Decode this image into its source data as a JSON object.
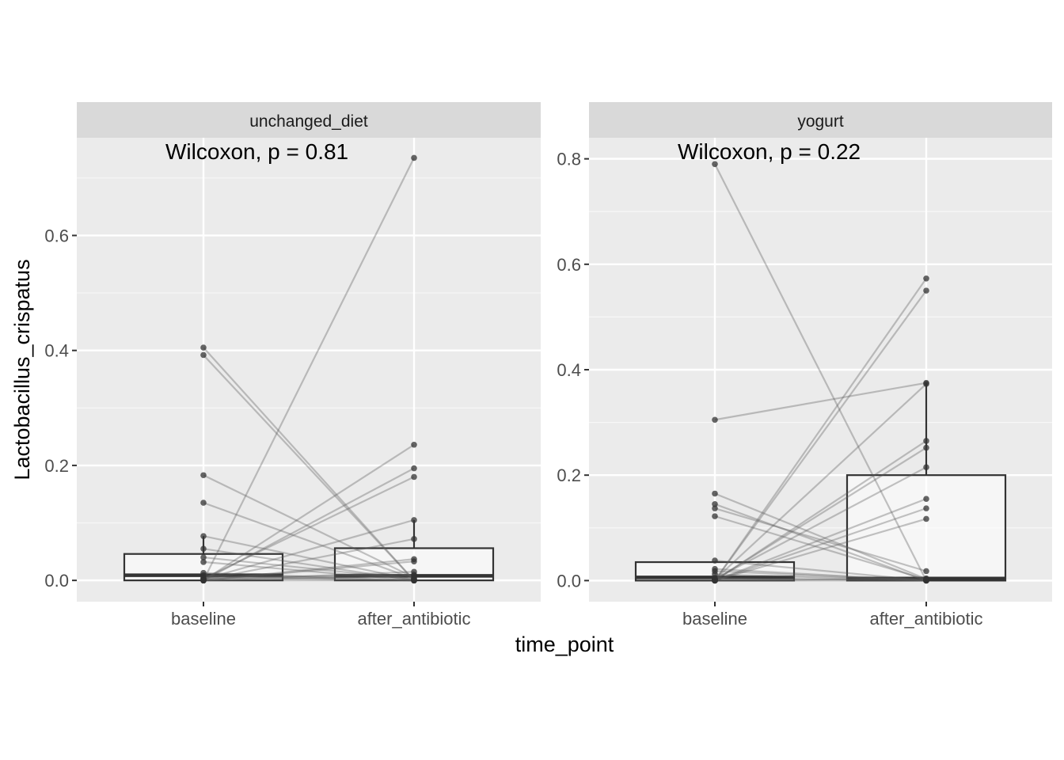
{
  "chart_data": {
    "type": "box-paired-faceted",
    "xlabel": "time_point",
    "ylabel": "Lactobacillus_crispatus",
    "categories": [
      "baseline",
      "after_antibiotic"
    ],
    "panels": [
      {
        "facet": "unchanged_diet",
        "annotation": "Wilcoxon, p = 0.81",
        "ylim": [
          -0.037,
          0.77
        ],
        "yticks": [
          0.0,
          0.2,
          0.4,
          0.6
        ],
        "ytick_labels": [
          "0.0",
          "0.2",
          "0.4",
          "0.6"
        ],
        "box": {
          "baseline": {
            "q1": 0.0,
            "median": 0.009,
            "q3": 0.046,
            "whisker_low": 0.0,
            "whisker_high": 0.077
          },
          "after_antibiotic": {
            "q1": 0.0,
            "median": 0.008,
            "q3": 0.056,
            "whisker_low": 0.0,
            "whisker_high": 0.105
          }
        },
        "pairs": [
          [
            0.405,
            0.0
          ],
          [
            0.392,
            0.0
          ],
          [
            0.183,
            0.005
          ],
          [
            0.135,
            0.003
          ],
          [
            0.077,
            0.001
          ],
          [
            0.055,
            0.0
          ],
          [
            0.04,
            0.002
          ],
          [
            0.032,
            0.0
          ],
          [
            0.013,
            0.0
          ],
          [
            0.009,
            0.0
          ],
          [
            0.005,
            0.0
          ],
          [
            0.004,
            0.01
          ],
          [
            0.0,
            0.735
          ],
          [
            0.0,
            0.236
          ],
          [
            0.0,
            0.195
          ],
          [
            0.003,
            0.18
          ],
          [
            0.002,
            0.105
          ],
          [
            0.001,
            0.072
          ],
          [
            0.0,
            0.037
          ],
          [
            0.0,
            0.033
          ],
          [
            0.0,
            0.015
          ],
          [
            0.0,
            0.008
          ],
          [
            0.0,
            0.0
          ]
        ]
      },
      {
        "facet": "yogurt",
        "annotation": "Wilcoxon, p = 0.22",
        "ylim": [
          -0.04,
          0.84
        ],
        "yticks": [
          0.0,
          0.2,
          0.4,
          0.6,
          0.8
        ],
        "ytick_labels": [
          "0.0",
          "0.2",
          "0.4",
          "0.6",
          "0.8"
        ],
        "box": {
          "baseline": {
            "q1": 0.0,
            "median": 0.006,
            "q3": 0.035,
            "whisker_low": 0.0,
            "whisker_high": 0.035
          },
          "after_antibiotic": {
            "q1": 0.0,
            "median": 0.004,
            "q3": 0.2,
            "whisker_low": 0.0,
            "whisker_high": 0.375
          }
        },
        "pairs": [
          [
            0.79,
            0.0
          ],
          [
            0.305,
            0.375
          ],
          [
            0.165,
            0.003
          ],
          [
            0.145,
            0.0
          ],
          [
            0.137,
            0.018
          ],
          [
            0.122,
            0.002
          ],
          [
            0.038,
            0.0
          ],
          [
            0.022,
            0.0
          ],
          [
            0.018,
            0.0
          ],
          [
            0.012,
            0.0
          ],
          [
            0.005,
            0.0
          ],
          [
            0.0,
            0.573
          ],
          [
            0.0,
            0.55
          ],
          [
            0.002,
            0.373
          ],
          [
            0.0,
            0.265
          ],
          [
            0.001,
            0.252
          ],
          [
            0.003,
            0.215
          ],
          [
            0.0,
            0.155
          ],
          [
            0.0,
            0.137
          ],
          [
            0.0,
            0.117
          ],
          [
            0.0,
            0.004
          ],
          [
            0.0,
            0.0
          ]
        ]
      }
    ]
  }
}
